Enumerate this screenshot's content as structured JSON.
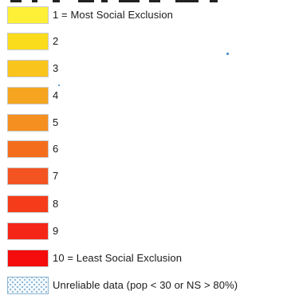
{
  "legend": {
    "items": [
      {
        "label": "1 = Most Social Exclusion",
        "color": "#fdf036"
      },
      {
        "label": "2",
        "color": "#fbdc1c"
      },
      {
        "label": "3",
        "color": "#f9c51c"
      },
      {
        "label": "4",
        "color": "#f5a51f"
      },
      {
        "label": "5",
        "color": "#f48f20"
      },
      {
        "label": "6",
        "color": "#f46d1c"
      },
      {
        "label": "7",
        "color": "#f45421"
      },
      {
        "label": "8",
        "color": "#f53b1a"
      },
      {
        "label": "9",
        "color": "#f52617"
      },
      {
        "label": "10 = Least Social Exclusion",
        "color": "#f50c0c"
      }
    ],
    "unreliable": {
      "label": "Unreliable data (pop < 30 or NS > 80%)",
      "pattern": "stippled-dots",
      "color": "#6fa6cc"
    }
  }
}
